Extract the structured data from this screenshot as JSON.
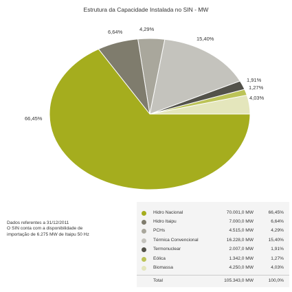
{
  "chart_data": {
    "type": "pie",
    "title": "Estrutura da Capacidade Instalada no SIN - MW",
    "unit": "MW",
    "slices": [
      {
        "name": "Hidro Nacional",
        "value_label": "70.001,0 MW",
        "value": 70001.0,
        "percent": 66.45,
        "percent_label": "66,45%",
        "color": "#a5ad1e"
      },
      {
        "name": "Hidro Itaipu",
        "value_label": "7.000,0 MW",
        "value": 7000.0,
        "percent": 6.64,
        "percent_label": "6,64%",
        "color": "#7f7c6d"
      },
      {
        "name": "PCHs",
        "value_label": "4.515,0 MW",
        "value": 4515.0,
        "percent": 4.29,
        "percent_label": "4,29%",
        "color": "#a9a79c"
      },
      {
        "name": "Térmica Convencional",
        "value_label": "16.228,0 MW",
        "value": 16228.0,
        "percent": 15.4,
        "percent_label": "15,40%",
        "color": "#c4c3bd"
      },
      {
        "name": "Termonuclear",
        "value_label": "2.007,0 MW",
        "value": 2007.0,
        "percent": 1.91,
        "percent_label": "1,91%",
        "color": "#53524a"
      },
      {
        "name": "Eólica",
        "value_label": "1.342,0 MW",
        "value": 1342.0,
        "percent": 1.27,
        "percent_label": "1,27%",
        "color": "#bcc357"
      },
      {
        "name": "Biomassa",
        "value_label": "4.250,0 MW",
        "value": 4250.0,
        "percent": 4.03,
        "percent_label": "4,03%",
        "color": "#e4e6bc"
      }
    ],
    "total": {
      "name": "Total",
      "value_label": "105.343,0 MW",
      "value": 105343.0,
      "percent_label": "100,0%"
    },
    "legend_placement": "bottom-right"
  },
  "notes": {
    "line1": "Dados referentes a 31/12/2011",
    "line2": "O SIN conta com a disponibilidade de",
    "line3": "importação de 6.275 MW de Itaipu 50 Hz"
  }
}
